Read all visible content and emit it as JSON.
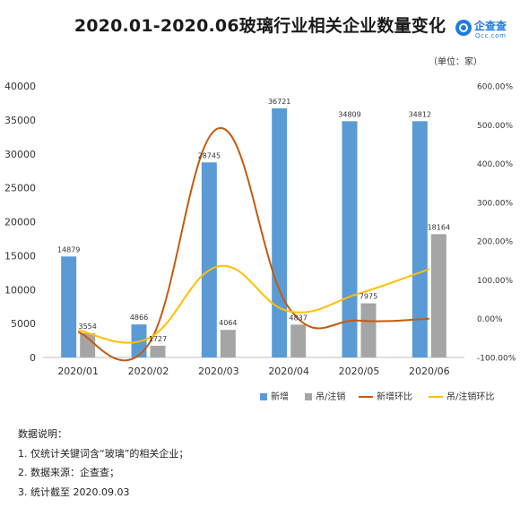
{
  "title": "2020.01-2020.06玻璃行业相关企业数量变化",
  "unit_label": "（单位：家）",
  "logo": {
    "name": "企查查",
    "sub": "Qcc.com"
  },
  "colors": {
    "new": "#5b9bd5",
    "cancel": "#a5a5a5",
    "new_mom": "#c55a11",
    "cancel_mom": "#ffc000"
  },
  "legend": {
    "new": "新增",
    "cancel": "吊/注销",
    "new_mom": "新增环比",
    "cancel_mom": "吊/注销环比"
  },
  "notes": {
    "heading": "数据说明：",
    "line1": "1. 仅统计关键词含“玻璃”的相关企业；",
    "line2": "2. 数据来源：企查查；",
    "line3": "3. 统计截至 2020.09.03"
  },
  "chart_data": {
    "type": "bar",
    "categories": [
      "2020/01",
      "2020/02",
      "2020/03",
      "2020/04",
      "2020/05",
      "2020/06"
    ],
    "series": [
      {
        "name": "新增",
        "type": "bar",
        "axis": "left",
        "values": [
          14879,
          4866,
          28745,
          36721,
          34809,
          34812
        ]
      },
      {
        "name": "吊/注销",
        "type": "bar",
        "axis": "left",
        "values": [
          3554,
          1727,
          4064,
          4837,
          7975,
          18164
        ]
      },
      {
        "name": "新增环比",
        "type": "line",
        "axis": "right",
        "values": [
          -35,
          -67,
          491,
          28,
          -5,
          0
        ]
      },
      {
        "name": "吊/注销环比",
        "type": "line",
        "axis": "right",
        "values": [
          -30,
          -51,
          135,
          19,
          65,
          128
        ]
      }
    ],
    "y_left": {
      "min": 0,
      "max": 40000,
      "ticks": [
        "0",
        "5000",
        "10000",
        "15000",
        "20000",
        "25000",
        "30000",
        "35000",
        "40000"
      ]
    },
    "y_right": {
      "min": -100,
      "max": 600,
      "ticks": [
        "-100.00%",
        "0.00%",
        "100.00%",
        "200.00%",
        "300.00%",
        "400.00%",
        "500.00%",
        "600.00%"
      ]
    },
    "grid": false,
    "legend_position": "bottom"
  }
}
